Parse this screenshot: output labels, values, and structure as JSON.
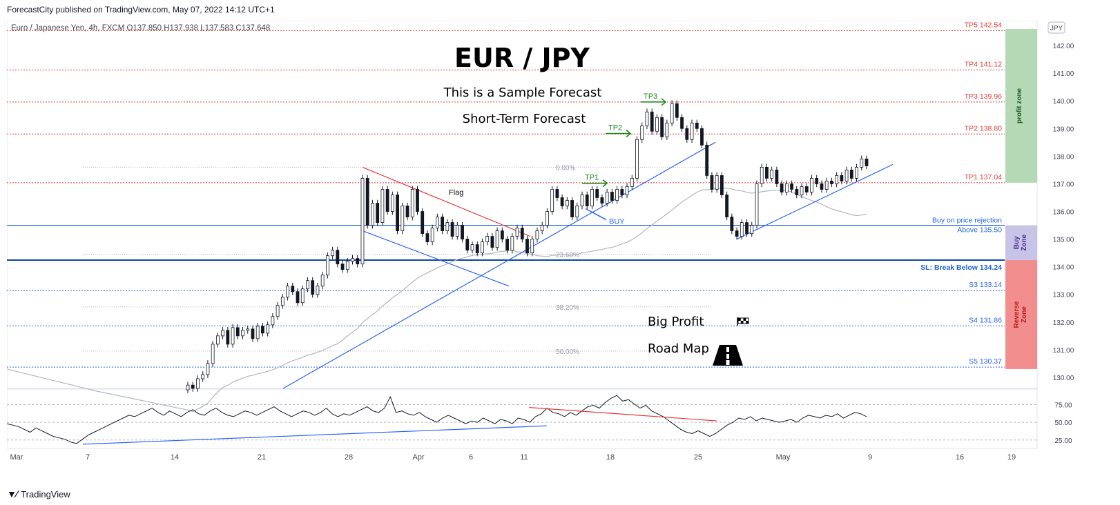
{
  "header": {
    "published": "ForecastCity published on TradingView.com, May 07, 2022 14:12 UTC+1"
  },
  "symbol_line": "Euro / Japanese Yen, 4h, FXCM  O137.850  H137.938  L137.583  C137.648",
  "currency_badge": "JPY",
  "chart_data": {
    "type": "line",
    "title": "EUR / JPY",
    "subtitle": "This is a Sample Forecast",
    "subtitle2": "Short-Term Forecast",
    "big_profit": "Big Profit",
    "road_map": "Road Map",
    "ylim": [
      129.6,
      142.9
    ],
    "price_ticks": [
      "142.00",
      "141.00",
      "140.00",
      "139.00",
      "138.00",
      "137.00",
      "136.00",
      "135.00",
      "134.00",
      "133.00",
      "132.00",
      "131.00",
      "130.00"
    ],
    "x_ticks": [
      "Mar",
      "7",
      "14",
      "21",
      "28",
      "Apr",
      "6",
      "11",
      "18",
      "25",
      "May",
      "9",
      "16",
      "19"
    ],
    "levels": [
      {
        "label": "TP5 142.54",
        "value": 142.54,
        "kind": "tp"
      },
      {
        "label": "TP4 141.12",
        "value": 141.12,
        "kind": "tp"
      },
      {
        "label": "TP3 139.96",
        "value": 139.96,
        "kind": "tp"
      },
      {
        "label": "TP2 138.80",
        "value": 138.8,
        "kind": "tp"
      },
      {
        "label": "TP1 137.04",
        "value": 137.04,
        "kind": "tp"
      },
      {
        "label": "S3 133.14",
        "value": 133.14,
        "kind": "support"
      },
      {
        "label": "S4 131.86",
        "value": 131.86,
        "kind": "support"
      },
      {
        "label": "S5 130.37",
        "value": 130.37,
        "kind": "support"
      }
    ],
    "buy_rejection_label": "Buy on price rejection",
    "buy_above_label": "Above 135.50",
    "buy_value": 135.5,
    "sl_label": "SL: Break Below 134.24",
    "sl_value": 134.24,
    "fib_levels": [
      {
        "label": "0.00%",
        "value": 137.6
      },
      {
        "label": "23.60%",
        "value": 134.45
      },
      {
        "label": "38.20%",
        "value": 132.55
      },
      {
        "label": "50.00%",
        "value": 130.95
      }
    ],
    "annotations": {
      "flag": "Flag",
      "buy": "BUY",
      "tp1": "TP1",
      "tp2": "TP2",
      "tp3": "TP3"
    },
    "zones": [
      {
        "label": "profit zone",
        "from": 137.04,
        "to": 142.6,
        "color": "#b5d9b5"
      },
      {
        "label": "Buy Zone",
        "from": 134.24,
        "to": 135.5,
        "color": "#c8c4e8"
      },
      {
        "label": "Reverse Zone",
        "from": 130.3,
        "to": 134.24,
        "color": "#f28e8e"
      }
    ],
    "candles": [
      [
        129.55,
        129.72
      ],
      [
        129.72,
        129.6
      ],
      [
        129.6,
        129.95
      ],
      [
        129.95,
        130.1
      ],
      [
        130.1,
        130.5
      ],
      [
        130.5,
        131.2
      ],
      [
        131.2,
        131.5
      ],
      [
        131.5,
        131.7
      ],
      [
        131.7,
        131.2
      ],
      [
        131.2,
        131.8
      ],
      [
        131.8,
        131.5
      ],
      [
        131.5,
        131.7
      ],
      [
        131.7,
        131.75
      ],
      [
        131.75,
        131.4
      ],
      [
        131.4,
        131.85
      ],
      [
        131.85,
        131.6
      ],
      [
        131.6,
        131.9
      ],
      [
        131.9,
        132.2
      ],
      [
        132.2,
        132.6
      ],
      [
        132.6,
        132.9
      ],
      [
        132.9,
        133.3
      ],
      [
        133.3,
        133.1
      ],
      [
        133.1,
        132.7
      ],
      [
        132.7,
        133.2
      ],
      [
        133.2,
        133.5
      ],
      [
        133.5,
        133.0
      ],
      [
        133.0,
        133.3
      ],
      [
        133.3,
        133.7
      ],
      [
        133.7,
        134.4
      ],
      [
        134.4,
        134.6
      ],
      [
        134.6,
        134.1
      ],
      [
        134.1,
        133.9
      ],
      [
        133.9,
        134.2
      ],
      [
        134.2,
        134.3
      ],
      [
        134.3,
        134.1
      ],
      [
        134.1,
        137.2
      ],
      [
        137.2,
        135.5
      ],
      [
        135.5,
        136.3
      ],
      [
        136.3,
        135.6
      ],
      [
        135.6,
        136.8
      ],
      [
        136.8,
        136.0
      ],
      [
        136.0,
        136.6
      ],
      [
        136.6,
        135.3
      ],
      [
        135.3,
        136.2
      ],
      [
        136.2,
        135.8
      ],
      [
        135.8,
        136.8
      ],
      [
        136.8,
        136.0
      ],
      [
        136.0,
        135.2
      ],
      [
        135.2,
        134.9
      ],
      [
        134.9,
        135.4
      ],
      [
        135.4,
        135.8
      ],
      [
        135.8,
        135.3
      ],
      [
        135.3,
        135.6
      ],
      [
        135.6,
        135.1
      ],
      [
        135.1,
        135.5
      ],
      [
        135.5,
        135.0
      ],
      [
        135.0,
        134.6
      ],
      [
        134.6,
        134.8
      ],
      [
        134.8,
        134.5
      ],
      [
        134.5,
        134.9
      ],
      [
        134.9,
        135.1
      ],
      [
        135.1,
        134.7
      ],
      [
        134.7,
        135.3
      ],
      [
        135.3,
        135.0
      ],
      [
        135.0,
        134.6
      ],
      [
        134.6,
        135.1
      ],
      [
        135.1,
        135.4
      ],
      [
        135.4,
        135.0
      ],
      [
        135.0,
        134.5
      ],
      [
        134.5,
        135.0
      ],
      [
        135.0,
        135.3
      ],
      [
        135.3,
        135.5
      ],
      [
        135.5,
        136.0
      ],
      [
        136.0,
        136.8
      ],
      [
        136.8,
        136.5
      ],
      [
        136.5,
        136.2
      ],
      [
        136.2,
        136.4
      ],
      [
        136.4,
        135.8
      ],
      [
        135.8,
        136.2
      ],
      [
        136.2,
        136.6
      ],
      [
        136.6,
        136.2
      ],
      [
        136.2,
        136.8
      ],
      [
        136.8,
        136.5
      ],
      [
        136.5,
        136.3
      ],
      [
        136.3,
        136.7
      ],
      [
        136.7,
        136.4
      ],
      [
        136.4,
        136.8
      ],
      [
        136.8,
        136.6
      ],
      [
        136.6,
        136.9
      ],
      [
        136.9,
        137.2
      ],
      [
        137.2,
        138.6
      ],
      [
        138.6,
        139.1
      ],
      [
        139.1,
        139.6
      ],
      [
        139.6,
        138.9
      ],
      [
        138.9,
        139.4
      ],
      [
        139.4,
        138.7
      ],
      [
        138.7,
        139.2
      ],
      [
        139.2,
        139.9
      ],
      [
        139.9,
        139.4
      ],
      [
        139.4,
        139.0
      ],
      [
        139.0,
        138.6
      ],
      [
        138.6,
        139.2
      ],
      [
        139.2,
        139.0
      ],
      [
        139.0,
        138.4
      ],
      [
        138.4,
        137.3
      ],
      [
        137.3,
        136.8
      ],
      [
        136.8,
        137.3
      ],
      [
        137.3,
        136.6
      ],
      [
        136.6,
        135.8
      ],
      [
        135.8,
        135.3
      ],
      [
        135.3,
        135.1
      ],
      [
        135.1,
        135.6
      ],
      [
        135.6,
        135.2
      ],
      [
        135.2,
        135.5
      ],
      [
        135.5,
        137.0
      ],
      [
        137.0,
        137.6
      ],
      [
        137.6,
        137.2
      ],
      [
        137.2,
        137.5
      ],
      [
        137.5,
        137.0
      ],
      [
        137.0,
        136.7
      ],
      [
        136.7,
        137.0
      ],
      [
        137.0,
        136.8
      ],
      [
        136.8,
        136.6
      ],
      [
        136.6,
        136.9
      ],
      [
        136.9,
        136.7
      ],
      [
        136.7,
        137.2
      ],
      [
        137.2,
        137.0
      ],
      [
        137.0,
        136.8
      ],
      [
        136.8,
        137.1
      ],
      [
        137.1,
        137.0
      ],
      [
        137.0,
        137.3
      ],
      [
        137.3,
        137.1
      ],
      [
        137.1,
        137.5
      ],
      [
        137.5,
        137.2
      ],
      [
        137.2,
        137.6
      ],
      [
        137.6,
        137.9
      ],
      [
        137.9,
        137.65
      ]
    ],
    "rsi": {
      "ticks": [
        "75.00",
        "50.00",
        "25.00"
      ],
      "ylim": [
        15,
        95
      ],
      "values": [
        48,
        46,
        44,
        40,
        36,
        42,
        38,
        34,
        30,
        28,
        26,
        22,
        20,
        26,
        32,
        36,
        40,
        44,
        48,
        52,
        56,
        60,
        58,
        62,
        66,
        70,
        64,
        60,
        66,
        62,
        58,
        64,
        68,
        62,
        60,
        66,
        70,
        64,
        60,
        58,
        62,
        66,
        64,
        60,
        64,
        68,
        72,
        66,
        62,
        58,
        62,
        66,
        64,
        60,
        64,
        70,
        62,
        58,
        62,
        60,
        64,
        68,
        72,
        66,
        64,
        70,
        86,
        64,
        66,
        62,
        60,
        64,
        58,
        54,
        50,
        56,
        60,
        56,
        52,
        48,
        52,
        50,
        56,
        52,
        48,
        54,
        52,
        48,
        56,
        54,
        50,
        58,
        62,
        70,
        64,
        62,
        58,
        64,
        60,
        66,
        72,
        74,
        70,
        78,
        84,
        88,
        80,
        82,
        76,
        70,
        74,
        66,
        62,
        58,
        52,
        46,
        40,
        36,
        34,
        38,
        34,
        30,
        34,
        40,
        46,
        50,
        56,
        54,
        58,
        52,
        56,
        54,
        52,
        50,
        52,
        54,
        50,
        56,
        60,
        58,
        56,
        60,
        58,
        62,
        56,
        60,
        64,
        62,
        58
      ],
      "res_line_from": [
        31,
        71
      ],
      "res_line_to": [
        47,
        52
      ],
      "sup_line_from": [
        0,
        19
      ],
      "sup_line_to": [
        50,
        45
      ]
    }
  },
  "footer": {
    "brand": "TradingView"
  }
}
